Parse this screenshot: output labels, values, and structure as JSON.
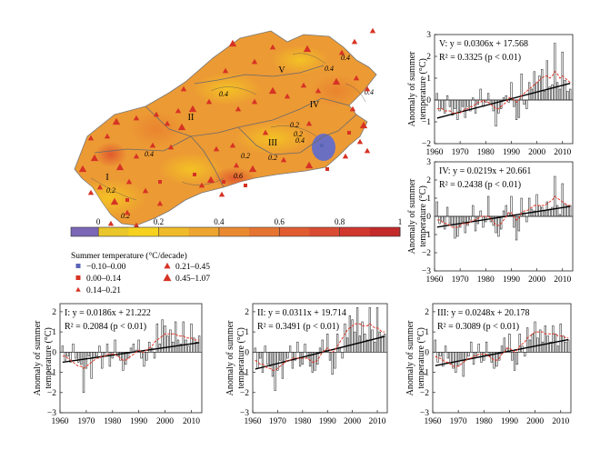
{
  "map": {
    "region_labels": [
      "I",
      "II",
      "III",
      "IV",
      "V"
    ],
    "contour_labels": [
      "0.4",
      "0.4",
      "0.2",
      "0.4",
      "0.2",
      "0.4",
      "0.2",
      "0.2",
      "0.4",
      "0.2",
      "0.6",
      "0.2",
      "0.4"
    ],
    "colorbar": {
      "title": "Summer temperature (°C/decade)",
      "ticks": [
        "0",
        "0.2",
        "0.4",
        "0.6",
        "0.8",
        "1"
      ],
      "colors": [
        "#e9c72a",
        "#f6d21f",
        "#f0bb2a",
        "#eda530",
        "#ea8a30",
        "#e57431",
        "#e15c31",
        "#d94b33",
        "#d0382f",
        "#c32a2a"
      ]
    },
    "legend": [
      {
        "symbol": "square-blue",
        "label": "−0.10–0.00",
        "color": "#5a64b7"
      },
      {
        "symbol": "triangle-small",
        "label": "0.21–0.45",
        "color": "#d63324"
      },
      {
        "symbol": "square-red",
        "label": "0.00–0.14",
        "color": "#d63324"
      },
      {
        "symbol": "triangle-large",
        "label": "0.45–1.07",
        "color": "#d63324"
      },
      {
        "symbol": "triangle-tiny",
        "label": "0.14–0.21",
        "color": "#d63324"
      }
    ]
  },
  "y_axis_label_line1": "Anomaly of summer",
  "y_axis_label_line2": "temperature (°C)",
  "chart_data": [
    {
      "type": "bar",
      "region": "V",
      "equation": "V: y = 0.0306x + 17.568",
      "r2": "R² = 0.3325 (p < 0.01)",
      "x_ticks": [
        "1960",
        "1970",
        "1980",
        "1990",
        "2000",
        "2010"
      ],
      "y_ticks": [
        "−2",
        "−1",
        "0",
        "1",
        "2",
        "3"
      ],
      "ylim": [
        -2,
        3
      ],
      "xlim": [
        1960,
        2014
      ],
      "x": [
        1961,
        1962,
        1963,
        1964,
        1965,
        1966,
        1967,
        1968,
        1969,
        1970,
        1971,
        1972,
        1973,
        1974,
        1975,
        1976,
        1977,
        1978,
        1979,
        1980,
        1981,
        1982,
        1983,
        1984,
        1985,
        1986,
        1987,
        1988,
        1989,
        1990,
        1991,
        1992,
        1993,
        1994,
        1995,
        1996,
        1997,
        1998,
        1999,
        2000,
        2001,
        2002,
        2003,
        2004,
        2005,
        2006,
        2007,
        2008,
        2009,
        2010,
        2011,
        2012,
        2013
      ],
      "values": [
        0.3,
        -0.5,
        -0.4,
        -0.6,
        0.2,
        -0.3,
        -0.7,
        -0.4,
        -0.9,
        -0.5,
        -0.3,
        -0.8,
        -0.3,
        -0.5,
        0.1,
        -0.6,
        -0.2,
        0.5,
        -0.3,
        -0.1,
        0.3,
        -0.2,
        -0.5,
        -1.2,
        -0.6,
        -0.4,
        0.1,
        0.2,
        -0.1,
        0.8,
        -0.3,
        -0.9,
        -0.8,
        1.2,
        -0.2,
        -0.4,
        0.8,
        0.5,
        1.3,
        0.8,
        1.1,
        1.4,
        0.4,
        1.8,
        0.6,
        0.7,
        2.6,
        0.8,
        0.5,
        2.2,
        0.9,
        0.4,
        0.5
      ],
      "smooth": [
        -0.4,
        -0.4,
        -0.4,
        -0.5,
        -0.5,
        -0.5,
        -0.6,
        -0.6,
        -0.6,
        -0.6,
        -0.5,
        -0.4,
        -0.4,
        -0.3,
        -0.3,
        -0.2,
        -0.1,
        -0.1,
        0.0,
        -0.1,
        -0.1,
        -0.2,
        -0.3,
        -0.4,
        -0.4,
        -0.3,
        -0.2,
        -0.1,
        0.1,
        0.1,
        0.0,
        -0.1,
        0.0,
        0.2,
        0.3,
        0.4,
        0.5,
        0.6,
        0.7,
        0.8,
        0.9,
        1.0,
        1.1,
        1.1,
        1.0,
        1.1,
        1.3,
        1.2,
        1.0,
        1.1,
        1.0,
        0.9,
        0.8
      ],
      "trend": {
        "slope": 0.0306,
        "value_1961": -0.83
      }
    },
    {
      "type": "bar",
      "region": "IV",
      "equation": "IV: y = 0.0219x + 20.661",
      "r2": "R² = 0.2438 (p < 0.01)",
      "x_ticks": [
        "1960",
        "1970",
        "1980",
        "1990",
        "2000",
        "2010"
      ],
      "y_ticks": [
        "−3",
        "−2",
        "−1",
        "0",
        "1",
        "2",
        "3"
      ],
      "ylim": [
        -3,
        3
      ],
      "xlim": [
        1960,
        2014
      ],
      "x": [
        1961,
        1962,
        1963,
        1964,
        1965,
        1966,
        1967,
        1968,
        1969,
        1970,
        1971,
        1972,
        1973,
        1974,
        1975,
        1976,
        1977,
        1978,
        1979,
        1980,
        1981,
        1982,
        1983,
        1984,
        1985,
        1986,
        1987,
        1988,
        1989,
        1990,
        1991,
        1992,
        1993,
        1994,
        1995,
        1996,
        1997,
        1998,
        1999,
        2000,
        2001,
        2002,
        2003,
        2004,
        2005,
        2006,
        2007,
        2008,
        2009,
        2010,
        2011,
        2012,
        2013
      ],
      "values": [
        0.8,
        -0.4,
        -0.3,
        -0.7,
        0.5,
        -0.4,
        -0.5,
        -1.2,
        -1.1,
        -0.6,
        -0.3,
        -0.9,
        -0.5,
        -0.2,
        0.6,
        -0.8,
        -0.4,
        0.3,
        -0.6,
        -0.3,
        1.1,
        -0.3,
        -0.5,
        -0.9,
        -1.1,
        -0.7,
        0.3,
        0.6,
        0.2,
        1.1,
        -0.6,
        -1.3,
        -0.8,
        1.0,
        0.2,
        -0.3,
        1.0,
        0.4,
        0.3,
        1.2,
        0.6,
        0.5,
        0.3,
        0.8,
        0.4,
        0.5,
        2.2,
        0.6,
        0.1,
        1.8,
        0.7,
        0.6,
        0.6
      ],
      "smooth": [
        -0.2,
        -0.2,
        -0.3,
        -0.4,
        -0.4,
        -0.5,
        -0.6,
        -0.6,
        -0.6,
        -0.5,
        -0.4,
        -0.4,
        -0.4,
        -0.3,
        -0.2,
        -0.2,
        -0.1,
        0.0,
        0.0,
        0.0,
        0.0,
        -0.1,
        -0.3,
        -0.5,
        -0.5,
        -0.4,
        -0.2,
        0.0,
        0.2,
        0.2,
        0.0,
        -0.2,
        -0.1,
        0.2,
        0.3,
        0.3,
        0.4,
        0.5,
        0.6,
        0.6,
        0.6,
        0.6,
        0.6,
        0.7,
        0.8,
        0.9,
        1.1,
        1.0,
        0.9,
        0.8,
        0.7,
        0.6,
        0.6
      ],
      "trend": {
        "slope": 0.0219,
        "value_1961": -0.59
      }
    },
    {
      "type": "bar",
      "region": "I",
      "equation": "I: y = 0.0186x + 21.222",
      "r2": "R² = 0.2084 (p < 0.01)",
      "x_ticks": [
        "1960",
        "1970",
        "1980",
        "1990",
        "2000",
        "2010"
      ],
      "y_ticks": [
        "−3",
        "−2",
        "−1",
        "0",
        "1",
        "2"
      ],
      "ylim": [
        -3,
        2.4
      ],
      "xlim": [
        1960,
        2014
      ],
      "x": [
        1961,
        1962,
        1963,
        1964,
        1965,
        1966,
        1967,
        1968,
        1969,
        1970,
        1971,
        1972,
        1973,
        1974,
        1975,
        1976,
        1977,
        1978,
        1979,
        1980,
        1981,
        1982,
        1983,
        1984,
        1985,
        1986,
        1987,
        1988,
        1989,
        1990,
        1991,
        1992,
        1993,
        1994,
        1995,
        1996,
        1997,
        1998,
        1999,
        2000,
        2001,
        2002,
        2003,
        2004,
        2005,
        2006,
        2007,
        2008,
        2009,
        2010,
        2011,
        2012,
        2013
      ],
      "values": [
        0.3,
        -0.4,
        -0.2,
        -0.5,
        0.4,
        -0.3,
        -0.5,
        -0.6,
        -2.0,
        -0.8,
        -0.2,
        -1.3,
        -0.3,
        -0.2,
        0.3,
        -0.8,
        -0.2,
        0.4,
        -0.7,
        -0.3,
        0.6,
        -0.2,
        -0.4,
        -0.9,
        -0.6,
        -0.3,
        0.2,
        0.4,
        0.1,
        0.6,
        -0.3,
        -0.7,
        -0.4,
        0.5,
        0.2,
        -0.3,
        1.4,
        0.4,
        1.6,
        1.3,
        0.8,
        1.1,
        0.5,
        1.5,
        0.6,
        0.4,
        1.5,
        0.6,
        0.3,
        1.4,
        0.7,
        0.5,
        0.8
      ],
      "smooth": [
        -0.2,
        -0.2,
        -0.3,
        -0.4,
        -0.5,
        -0.6,
        -0.7,
        -0.7,
        -0.8,
        -0.7,
        -0.6,
        -0.5,
        -0.4,
        -0.3,
        -0.3,
        -0.2,
        -0.2,
        -0.1,
        -0.1,
        -0.1,
        -0.1,
        -0.2,
        -0.3,
        -0.4,
        -0.4,
        -0.3,
        -0.2,
        -0.1,
        0.0,
        0.1,
        0.0,
        0.0,
        0.1,
        0.2,
        0.3,
        0.5,
        0.6,
        0.7,
        0.8,
        0.9,
        0.9,
        0.9,
        0.9,
        0.9,
        0.8,
        0.8,
        0.8,
        0.7,
        0.7,
        0.7,
        0.6,
        0.6,
        0.6
      ],
      "trend": {
        "slope": 0.0186,
        "value_1961": -0.5
      }
    },
    {
      "type": "bar",
      "region": "II",
      "equation": "II: y = 0.0311x + 19.714",
      "r2": "R² = 0.3491 (p < 0.01)",
      "x_ticks": [
        "1960",
        "1970",
        "1980",
        "1990",
        "2000",
        "2010"
      ],
      "y_ticks": [
        "−3",
        "−2",
        "−1",
        "0",
        "1",
        "2"
      ],
      "ylim": [
        -3,
        2.4
      ],
      "xlim": [
        1960,
        2014
      ],
      "x": [
        1961,
        1962,
        1963,
        1964,
        1965,
        1966,
        1967,
        1968,
        1969,
        1970,
        1971,
        1972,
        1973,
        1974,
        1975,
        1976,
        1977,
        1978,
        1979,
        1980,
        1981,
        1982,
        1983,
        1984,
        1985,
        1986,
        1987,
        1988,
        1989,
        1990,
        1991,
        1992,
        1993,
        1994,
        1995,
        1996,
        1997,
        1998,
        1999,
        2000,
        2001,
        2002,
        2003,
        2004,
        2005,
        2006,
        2007,
        2008,
        2009,
        2010,
        2011,
        2012,
        2013
      ],
      "values": [
        0.2,
        -0.8,
        -0.3,
        -1.0,
        0.3,
        -0.6,
        -0.7,
        -1.2,
        -1.9,
        -0.9,
        -0.4,
        -1.3,
        -0.5,
        -0.3,
        0.3,
        -0.8,
        -0.4,
        0.5,
        -0.7,
        -0.6,
        0.4,
        -0.3,
        -0.7,
        -1.0,
        -0.9,
        -0.6,
        0.2,
        0.6,
        0.1,
        0.9,
        -0.4,
        -1.1,
        -0.8,
        0.9,
        0.2,
        -0.3,
        1.4,
        0.7,
        1.8,
        1.6,
        1.0,
        2.2,
        0.8,
        1.5,
        0.9,
        0.6,
        2.2,
        1.1,
        0.5,
        2.2,
        1.0,
        0.8,
        0.9
      ],
      "smooth": [
        -0.4,
        -0.5,
        -0.6,
        -0.6,
        -0.7,
        -0.8,
        -0.8,
        -0.9,
        -0.9,
        -0.8,
        -0.7,
        -0.6,
        -0.5,
        -0.4,
        -0.4,
        -0.3,
        -0.3,
        -0.3,
        -0.3,
        -0.3,
        -0.3,
        -0.3,
        -0.4,
        -0.5,
        -0.5,
        -0.4,
        -0.2,
        0.0,
        0.1,
        0.2,
        0.1,
        0.0,
        0.1,
        0.3,
        0.5,
        0.7,
        0.9,
        1.1,
        1.2,
        1.3,
        1.4,
        1.4,
        1.4,
        1.3,
        1.3,
        1.3,
        1.4,
        1.3,
        1.2,
        1.2,
        1.1,
        1.0,
        1.0
      ],
      "trend": {
        "slope": 0.0311,
        "value_1961": -0.84
      }
    },
    {
      "type": "bar",
      "region": "III",
      "equation": "III: y = 0.0248x + 20.178",
      "r2": "R² = 0.3089 (p < 0.01)",
      "x_ticks": [
        "1960",
        "1970",
        "1980",
        "1990",
        "2000",
        "2010"
      ],
      "y_ticks": [
        "−3",
        "−2",
        "−1",
        "0",
        "1",
        "2"
      ],
      "ylim": [
        -3,
        2.4
      ],
      "xlim": [
        1960,
        2014
      ],
      "x": [
        1961,
        1962,
        1963,
        1964,
        1965,
        1966,
        1967,
        1968,
        1969,
        1970,
        1971,
        1972,
        1973,
        1974,
        1975,
        1976,
        1977,
        1978,
        1979,
        1980,
        1981,
        1982,
        1983,
        1984,
        1985,
        1986,
        1987,
        1988,
        1989,
        1990,
        1991,
        1992,
        1993,
        1994,
        1995,
        1996,
        1997,
        1998,
        1999,
        2000,
        2001,
        2002,
        2003,
        2004,
        2005,
        2006,
        2007,
        2008,
        2009,
        2010,
        2011,
        2012,
        2013
      ],
      "values": [
        0.6,
        -0.5,
        -0.2,
        -0.7,
        0.3,
        -0.3,
        -0.6,
        -0.8,
        -1.0,
        -0.7,
        -0.4,
        -1.2,
        -0.4,
        -0.2,
        0.5,
        -0.6,
        -0.2,
        0.4,
        -0.5,
        -0.4,
        0.5,
        -0.2,
        -0.5,
        -0.8,
        -0.7,
        -0.4,
        0.3,
        0.7,
        0.2,
        0.9,
        -0.4,
        -0.9,
        -0.6,
        0.9,
        0.3,
        -0.2,
        1.2,
        0.6,
        0.9,
        1.5,
        0.7,
        1.1,
        0.5,
        1.3,
        0.8,
        0.5,
        1.3,
        0.9,
        0.3,
        1.4,
        0.8,
        0.5,
        0.6
      ],
      "smooth": [
        -0.2,
        -0.3,
        -0.3,
        -0.4,
        -0.5,
        -0.5,
        -0.6,
        -0.7,
        -0.7,
        -0.7,
        -0.6,
        -0.5,
        -0.4,
        -0.3,
        -0.3,
        -0.2,
        -0.2,
        -0.1,
        -0.1,
        -0.1,
        -0.1,
        -0.2,
        -0.3,
        -0.4,
        -0.4,
        -0.3,
        -0.1,
        0.0,
        0.2,
        0.2,
        0.1,
        0.0,
        0.1,
        0.3,
        0.4,
        0.5,
        0.7,
        0.8,
        0.9,
        1.0,
        1.0,
        1.0,
        1.0,
        0.9,
        0.9,
        0.9,
        0.9,
        0.9,
        0.8,
        0.8,
        0.8,
        0.7,
        0.7
      ],
      "trend": {
        "slope": 0.0248,
        "value_1961": -0.67
      }
    }
  ]
}
